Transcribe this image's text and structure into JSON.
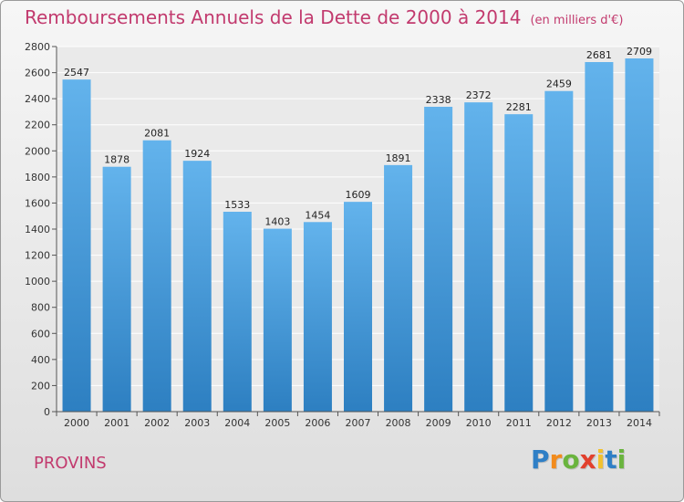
{
  "header": {
    "title": "Remboursements Annuels de la Dette de 2000 à 2014",
    "subtitle": "(en milliers d'€)"
  },
  "footer": {
    "place": "PROVINS",
    "logo": {
      "letters": [
        "P",
        "r",
        "o",
        "x",
        "i",
        "t",
        "i"
      ],
      "colors": [
        "#2f7fc6",
        "#f28b1c",
        "#6ab43e",
        "#e2402d",
        "#f2c12e",
        "#2f7fc6",
        "#6ab43e"
      ]
    }
  },
  "colors": {
    "bar_top": "#63b3ec",
    "bar_bottom": "#2d7fc1",
    "plot_bg": "#eaeaea",
    "grid": "#ffffff",
    "accent": "#c23a6e"
  },
  "chart_data": {
    "type": "bar",
    "title": "Remboursements Annuels de la Dette de 2000 à 2014",
    "subtitle": "(en milliers d'€)",
    "categories": [
      "2000",
      "2001",
      "2002",
      "2003",
      "2004",
      "2005",
      "2006",
      "2007",
      "2008",
      "2009",
      "2010",
      "2011",
      "2012",
      "2013",
      "2014"
    ],
    "values": [
      2547,
      1878,
      2081,
      1924,
      1533,
      1403,
      1454,
      1609,
      1891,
      2338,
      2372,
      2281,
      2459,
      2681,
      2709
    ],
    "ylim": [
      0,
      2800
    ],
    "yticks": [
      0,
      200,
      400,
      600,
      800,
      1000,
      1200,
      1400,
      1600,
      1800,
      2000,
      2200,
      2400,
      2600,
      2800
    ],
    "grid": true,
    "data_labels": true
  }
}
